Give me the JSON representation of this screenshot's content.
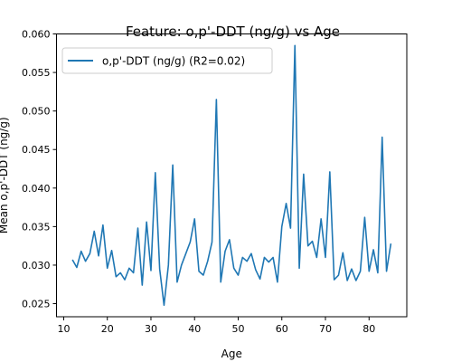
{
  "chart_data": {
    "type": "line",
    "title": "Feature: o,p'-DDT (ng/g) vs Age",
    "xlabel": "Age",
    "ylabel": "Mean o,p'-DDT (ng/g)",
    "xlim": [
      8.35,
      88.65
    ],
    "ylim": [
      0.0233,
      0.06
    ],
    "xticks": [
      10,
      20,
      30,
      40,
      50,
      60,
      70,
      80
    ],
    "yticks": [
      0.025,
      0.03,
      0.035,
      0.04,
      0.045,
      0.05,
      0.055,
      0.06
    ],
    "ytick_labels": [
      "0.025",
      "0.030",
      "0.035",
      "0.040",
      "0.045",
      "0.050",
      "0.055",
      "0.060"
    ],
    "grid": false,
    "legend_position": "top-left",
    "color": "#1f77b4",
    "series": [
      {
        "name": "o,p'-DDT (ng/g) (R2=0.02)",
        "x": [
          12,
          13,
          14,
          15,
          16,
          17,
          18,
          19,
          20,
          21,
          22,
          23,
          24,
          25,
          26,
          27,
          28,
          29,
          30,
          31,
          32,
          33,
          34,
          35,
          36,
          37,
          38,
          39,
          40,
          41,
          42,
          43,
          44,
          45,
          46,
          47,
          48,
          49,
          50,
          51,
          52,
          53,
          54,
          55,
          56,
          57,
          58,
          59,
          60,
          61,
          62,
          63,
          64,
          65,
          66,
          67,
          68,
          69,
          70,
          71,
          72,
          73,
          74,
          75,
          76,
          77,
          78,
          79,
          80,
          81,
          82,
          83,
          84,
          85
        ],
        "y": [
          0.0307,
          0.0297,
          0.0318,
          0.0305,
          0.0315,
          0.0344,
          0.0312,
          0.0352,
          0.0296,
          0.0319,
          0.0285,
          0.029,
          0.0281,
          0.0296,
          0.029,
          0.0348,
          0.0274,
          0.0356,
          0.0293,
          0.042,
          0.0295,
          0.0248,
          0.03,
          0.043,
          0.0278,
          0.03,
          0.0315,
          0.033,
          0.036,
          0.0292,
          0.0287,
          0.0305,
          0.033,
          0.0515,
          0.0278,
          0.0318,
          0.0333,
          0.0296,
          0.0287,
          0.031,
          0.0305,
          0.0315,
          0.0294,
          0.0282,
          0.031,
          0.0304,
          0.031,
          0.0278,
          0.035,
          0.038,
          0.0348,
          0.0585,
          0.0296,
          0.0418,
          0.0325,
          0.0331,
          0.031,
          0.036,
          0.031,
          0.0421,
          0.0281,
          0.0287,
          0.0316,
          0.028,
          0.0295,
          0.028,
          0.0292,
          0.0362,
          0.0292,
          0.032,
          0.029,
          0.0466,
          0.0292,
          0.0328
        ]
      }
    ]
  }
}
